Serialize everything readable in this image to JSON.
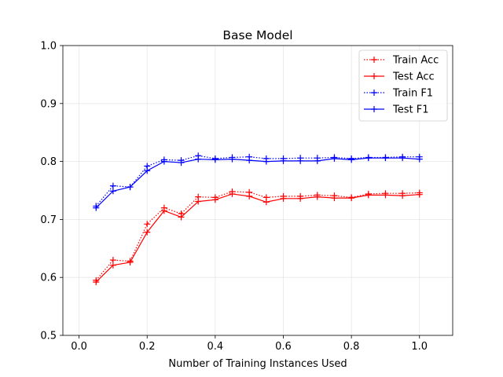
{
  "chart_data": {
    "type": "line",
    "title": "Base Model",
    "xlabel": "Number of Training Instances Used",
    "ylabel": "",
    "xlim": [
      -0.0475,
      1.0975
    ],
    "ylim": [
      0.5,
      1.0
    ],
    "xticks": [
      0.0,
      0.2,
      0.4,
      0.6,
      0.8,
      1.0
    ],
    "xtick_labels": [
      "0.0",
      "0.2",
      "0.4",
      "0.6",
      "0.8",
      "1.0"
    ],
    "yticks": [
      0.5,
      0.6,
      0.7,
      0.8,
      0.9,
      1.0
    ],
    "ytick_labels": [
      "0.5",
      "0.6",
      "0.7",
      "0.8",
      "0.9",
      "1.0"
    ],
    "grid": true,
    "legend": "top-right",
    "x": [
      0.05,
      0.1,
      0.15,
      0.2,
      0.25,
      0.3,
      0.35,
      0.4,
      0.45,
      0.5,
      0.55,
      0.6,
      0.65,
      0.7,
      0.75,
      0.8,
      0.85,
      0.9,
      0.95,
      1.0
    ],
    "series": [
      {
        "name": "Train Acc",
        "color": "#ff0000",
        "linestyle": "dotted",
        "marker": "+",
        "values": [
          0.595,
          0.63,
          0.628,
          0.692,
          0.72,
          0.71,
          0.739,
          0.738,
          0.748,
          0.747,
          0.738,
          0.74,
          0.74,
          0.742,
          0.741,
          0.738,
          0.744,
          0.745,
          0.745,
          0.746
        ]
      },
      {
        "name": "Test Acc",
        "color": "#ff0000",
        "linestyle": "solid",
        "marker": "+",
        "values": [
          0.592,
          0.621,
          0.626,
          0.678,
          0.715,
          0.704,
          0.731,
          0.734,
          0.744,
          0.74,
          0.73,
          0.736,
          0.736,
          0.739,
          0.737,
          0.737,
          0.742,
          0.742,
          0.741,
          0.743
        ]
      },
      {
        "name": "Train F1",
        "color": "#0000ff",
        "linestyle": "dotted",
        "marker": "+",
        "values": [
          0.723,
          0.758,
          0.756,
          0.792,
          0.803,
          0.802,
          0.81,
          0.805,
          0.807,
          0.808,
          0.805,
          0.805,
          0.806,
          0.806,
          0.807,
          0.805,
          0.807,
          0.807,
          0.808,
          0.808
        ]
      },
      {
        "name": "Test F1",
        "color": "#0000ff",
        "linestyle": "solid",
        "marker": "+",
        "values": [
          0.72,
          0.749,
          0.756,
          0.784,
          0.8,
          0.798,
          0.804,
          0.803,
          0.804,
          0.802,
          0.8,
          0.801,
          0.801,
          0.801,
          0.805,
          0.803,
          0.806,
          0.806,
          0.806,
          0.804
        ]
      }
    ]
  }
}
